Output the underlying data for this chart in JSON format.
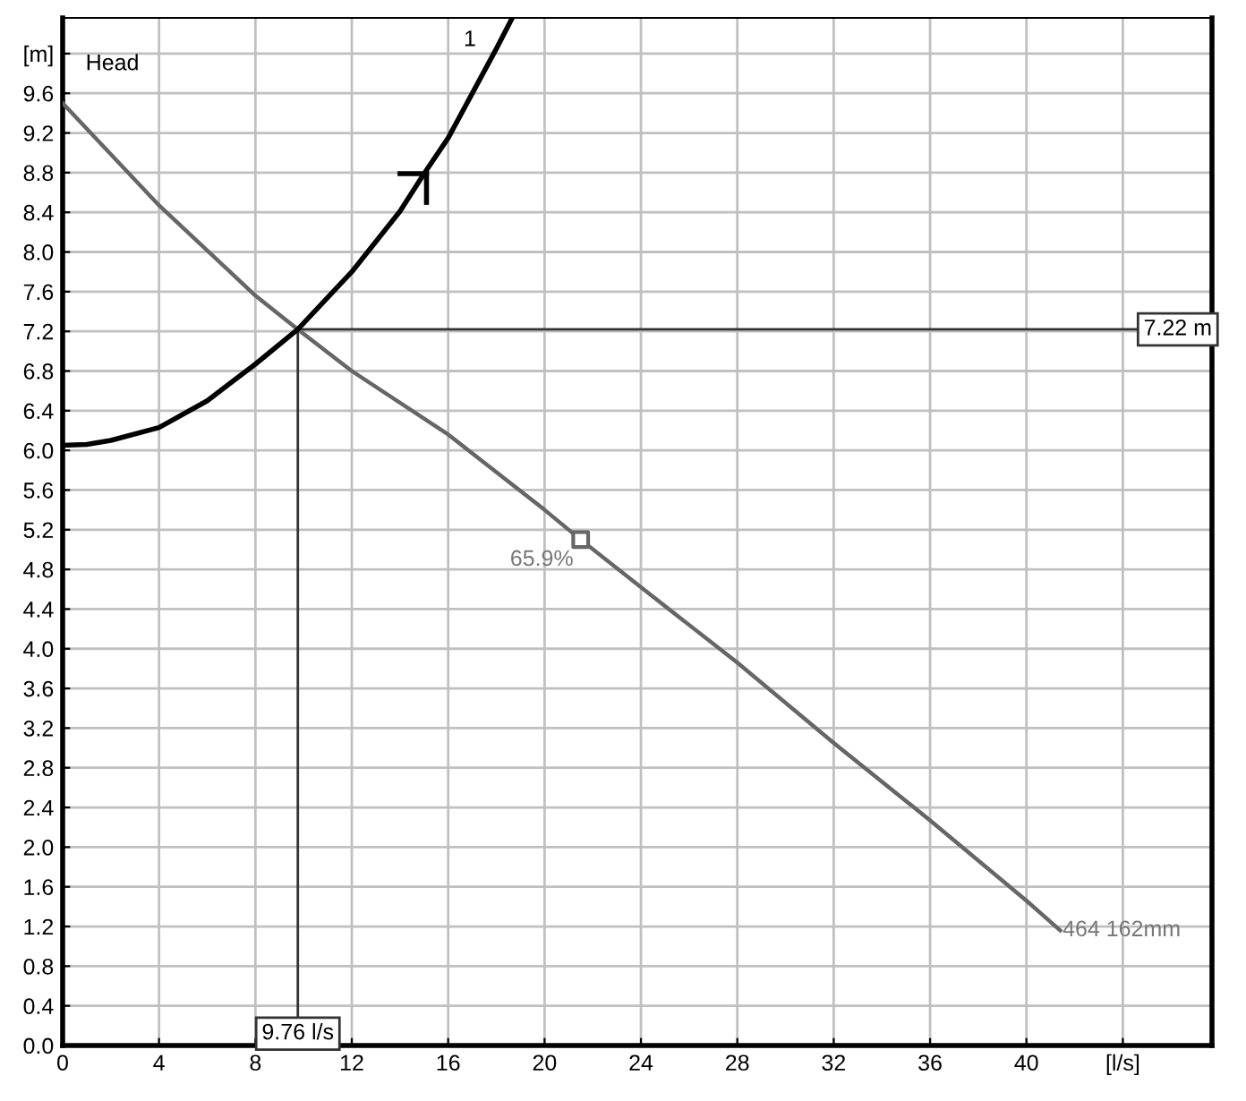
{
  "chart_data": {
    "type": "line",
    "annotations": [
      "Head",
      {
        "text": "65.9%",
        "x": 21.5,
        "y": 5.1
      }
    ],
    "series": [
      {
        "name": "464 162mm",
        "color": "#666666",
        "x": [
          0,
          4,
          8,
          9.76,
          12,
          16,
          20,
          21.5,
          24,
          28,
          32,
          36,
          40,
          41.4
        ],
        "values": [
          9.5,
          8.47,
          7.56,
          7.22,
          6.8,
          6.16,
          5.4,
          5.1,
          4.62,
          3.86,
          3.05,
          2.27,
          1.46,
          1.16
        ]
      },
      {
        "name": "1",
        "color": "#000000",
        "x": [
          0,
          1,
          2,
          4,
          6,
          8,
          9.76,
          12,
          14,
          15,
          16,
          18,
          18.66
        ],
        "values": [
          6.05,
          6.06,
          6.1,
          6.23,
          6.5,
          6.87,
          7.22,
          7.8,
          8.41,
          8.79,
          9.15,
          10.05,
          10.36
        ]
      },
      {
        "type": "scatter",
        "marker": "square",
        "color": "#666666",
        "x": [
          21.5
        ],
        "values": [
          5.1
        ]
      }
    ],
    "ref_lines": [
      {
        "axis": "x",
        "value": 9.76,
        "label": "9.76 l/s",
        "color": "#333333"
      },
      {
        "axis": "y",
        "value": 7.22,
        "label": "7.22 m",
        "color": "#333333"
      }
    ],
    "xlim": [
      0,
      47.7
    ],
    "xticks": [
      0,
      4,
      8,
      12,
      16,
      20,
      24,
      28,
      32,
      36,
      40,
      {
        "value": 44,
        "label": "[l/s]"
      }
    ],
    "ylim": [
      0,
      10.36
    ],
    "yticks": [
      {
        "value": 0,
        "label": "0.0"
      },
      0.4,
      0.8,
      1.2,
      1.6,
      {
        "value": 2,
        "label": "2.0"
      },
      2.4,
      2.8,
      3.2,
      3.6,
      {
        "value": 4,
        "label": "4.0"
      },
      4.4,
      4.8,
      5.2,
      5.6,
      {
        "value": 6,
        "label": "6.0"
      },
      6.4,
      6.8,
      7.2,
      7.6,
      {
        "value": 8,
        "label": "8.0"
      },
      8.4,
      8.8,
      9.2,
      9.6,
      {
        "value": 10,
        "label": "[m]"
      }
    ],
    "grid": true,
    "marker": "none",
    "line_style": "solid"
  }
}
